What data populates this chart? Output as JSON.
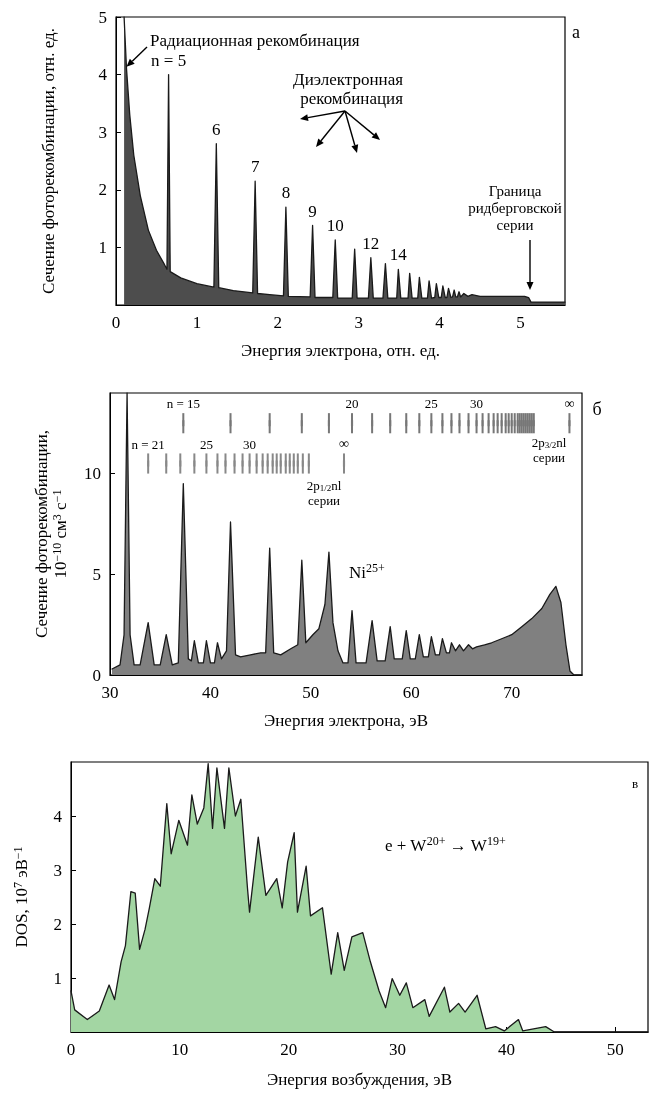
{
  "chart_data": [
    {
      "type": "area",
      "xlabel": "Энергия электрона, отн. ед.",
      "ylabel": "Сечение фоторекомбинации, отн. ед.",
      "color": "#4d4d4d",
      "x": [
        0.1,
        0.13,
        0.17,
        0.22,
        0.3,
        0.4,
        0.5,
        0.6,
        0.63,
        0.65,
        0.67,
        0.8,
        1.0,
        1.21,
        1.24,
        1.27,
        1.45,
        1.69,
        1.72,
        1.75,
        1.9,
        2.07,
        2.1,
        2.13,
        2.4,
        2.43,
        2.46,
        2.68,
        2.71,
        2.74,
        2.92,
        2.95,
        2.98,
        3.12,
        3.15,
        3.18,
        3.3,
        3.33,
        3.36,
        3.47,
        3.49,
        3.52,
        3.61,
        3.63,
        3.66,
        3.73,
        3.75,
        3.78,
        3.85,
        3.87,
        3.9,
        3.94,
        3.96,
        3.99,
        4.02,
        4.04,
        4.07,
        4.09,
        4.11,
        4.14,
        4.16,
        4.18,
        4.2,
        4.22,
        4.24,
        4.26,
        4.3,
        4.35,
        4.4,
        4.5,
        5.05,
        5.1,
        5.13,
        5.55
      ],
      "values": [
        5,
        4.1,
        3.3,
        2.6,
        1.9,
        1.3,
        0.95,
        0.7,
        0.62,
        4.0,
        0.58,
        0.47,
        0.37,
        0.31,
        2.8,
        0.3,
        0.25,
        0.21,
        2.15,
        0.2,
        0.18,
        0.16,
        1.7,
        0.15,
        0.14,
        1.38,
        0.13,
        0.13,
        1.13,
        0.12,
        0.12,
        0.97,
        0.12,
        0.12,
        0.82,
        0.12,
        0.12,
        0.72,
        0.12,
        0.12,
        0.62,
        0.12,
        0.12,
        0.55,
        0.12,
        0.12,
        0.48,
        0.12,
        0.12,
        0.42,
        0.12,
        0.13,
        0.37,
        0.13,
        0.13,
        0.33,
        0.13,
        0.13,
        0.29,
        0.13,
        0.14,
        0.26,
        0.14,
        0.14,
        0.23,
        0.14,
        0.2,
        0.15,
        0.18,
        0.15,
        0.15,
        0.13,
        0.05,
        0.05
      ],
      "xlim": [
        0,
        5.55
      ],
      "xticks": [
        0,
        1,
        2,
        3,
        4,
        5
      ],
      "ylim": [
        0,
        5
      ],
      "yticks": [
        1,
        2,
        3,
        4,
        5
      ],
      "annotations": [
        {
          "text": "Радиационная рекомбинация",
          "x": 0.13,
          "y": 4.1
        },
        {
          "text": "n = 5",
          "x": 0.65,
          "y": 4.0
        },
        {
          "text": "6",
          "x": 1.24,
          "y": 2.8
        },
        {
          "text": "7",
          "x": 1.72,
          "y": 2.15
        },
        {
          "text": "8",
          "x": 2.1,
          "y": 1.7
        },
        {
          "text": "9",
          "x": 2.43,
          "y": 1.38
        },
        {
          "text": "10",
          "x": 2.71,
          "y": 1.13
        },
        {
          "text": "12",
          "x": 3.15,
          "y": 0.82
        },
        {
          "text": "14",
          "x": 3.49,
          "y": 0.62
        },
        "Диэлектронная рекомбинация",
        "Граница ридберговской серии",
        "а"
      ]
    },
    {
      "type": "area",
      "xlabel": "Энергия электрона, эВ",
      "ylabel": "Сечение фоторекомбинации, 10$^{−10}$ см$^{3}$ с$^{−1}$",
      "series": [
        {
          "color": "#808080",
          "x": [
            30.2,
            31.0,
            31.4,
            31.7,
            32.0,
            32.4,
            33.0,
            33.8,
            34.4,
            35.0,
            35.6,
            36.2,
            36.8,
            37.3,
            37.8,
            38.1,
            38.4,
            38.8,
            39.3,
            39.6,
            40.0,
            40.4,
            40.7,
            41.1,
            41.6,
            42.0,
            42.5,
            43.0,
            44.0,
            45.0,
            45.5,
            45.9,
            46.3,
            47.0,
            48.0,
            48.7,
            49.1,
            49.5,
            50.2,
            50.8,
            51.4,
            51.8,
            52.2,
            52.7,
            53.2,
            53.7,
            54.1,
            54.5,
            55.5,
            56.1,
            56.6,
            57.4,
            57.9,
            58.3,
            59.1,
            59.5,
            59.9,
            60.4,
            60.8,
            61.2,
            61.7,
            62.0,
            62.4,
            62.8,
            63.1,
            63.5,
            63.8,
            64.0,
            64.4,
            64.8,
            65.2,
            65.7,
            66.1,
            66.5,
            67.3,
            68.0,
            69.0,
            70.0,
            71.0,
            72.0,
            73.0,
            73.8,
            74.4,
            74.9,
            75.4,
            75.8,
            76.2,
            77.0
          ],
          "values": [
            0.3,
            0.5,
            2,
            14,
            2,
            0.5,
            0.5,
            2.6,
            0.5,
            0.5,
            2.0,
            0.5,
            0.6,
            9.5,
            0.8,
            0.7,
            1.7,
            0.6,
            0.6,
            1.7,
            0.6,
            0.6,
            1.6,
            0.8,
            1.2,
            7.6,
            1.0,
            0.9,
            1.0,
            1.1,
            1.1,
            6.3,
            1.1,
            1.0,
            1.3,
            1.5,
            5.7,
            1.6,
            2.0,
            2.3,
            3.5,
            6.1,
            2.6,
            1.2,
            0.6,
            0.6,
            3.2,
            0.6,
            0.6,
            2.7,
            0.7,
            0.7,
            2.4,
            0.8,
            0.8,
            2.2,
            0.8,
            0.8,
            2.0,
            0.9,
            0.9,
            1.9,
            1.0,
            1.0,
            1.8,
            1.1,
            1.1,
            1.6,
            1.2,
            1.5,
            1.2,
            1.5,
            1.3,
            1.4,
            1.5,
            1.6,
            1.8,
            2.0,
            2.4,
            2.8,
            3.3,
            4.0,
            4.4,
            3.6,
            1.5,
            0.2,
            0,
            0
          ]
        },
        {
          "type": "scatter",
          "marker": "square",
          "color": "#777777",
          "x": [
            37.3,
            42.0,
            45.9,
            49.1,
            51.8,
            54.1,
            56.1,
            57.9,
            59.5,
            60.8,
            62.0,
            63.1,
            64.0,
            64.8,
            65.7,
            66.5,
            67.1,
            67.7,
            68.2,
            68.6,
            69.0,
            69.4,
            69.7,
            70.0,
            70.3,
            70.6,
            70.8,
            71.0,
            71.2,
            71.4,
            71.6,
            71.8,
            72.0,
            72.2,
            75.75
          ],
          "values": [
            12.5,
            12.5,
            12.5,
            12.5,
            12.5,
            12.5,
            12.5,
            12.5,
            12.5,
            12.5,
            12.5,
            12.5,
            12.5,
            12.5,
            12.5,
            12.5,
            12.5,
            12.5,
            12.5,
            12.5,
            12.5,
            12.5,
            12.5,
            12.5,
            12.5,
            12.5,
            12.5,
            12.5,
            12.5,
            12.5,
            12.5,
            12.5,
            12.5,
            12.5,
            12.5
          ],
          "errors": [
            0.5,
            0.5,
            0.5,
            0.5,
            0.5,
            0.5,
            0.5,
            0.5,
            0.5,
            0.5,
            0.5,
            0.5,
            0.5,
            0.5,
            0.5,
            0.5,
            0.5,
            0.5,
            0.5,
            0.5,
            0.5,
            0.5,
            0.5,
            0.5,
            0.5,
            0.5,
            0.5,
            0.5,
            0.5,
            0.5,
            0.5,
            0.5,
            0.5,
            0.5,
            0.5
          ]
        },
        {
          "type": "scatter",
          "marker": "square",
          "color": "#888888",
          "x": [
            33.8,
            35.6,
            37.0,
            38.4,
            39.6,
            40.7,
            41.5,
            42.4,
            43.2,
            43.9,
            44.6,
            45.2,
            45.7,
            46.2,
            46.6,
            47.0,
            47.5,
            47.9,
            48.3,
            48.7,
            49.2,
            49.8,
            53.3
          ],
          "values": [
            10.5,
            10.5,
            10.5,
            10.5,
            10.5,
            10.5,
            10.5,
            10.5,
            10.5,
            10.5,
            10.5,
            10.5,
            10.5,
            10.5,
            10.5,
            10.5,
            10.5,
            10.5,
            10.5,
            10.5,
            10.5,
            10.5,
            10.5
          ],
          "errors": [
            0.5,
            0.5,
            0.5,
            0.5,
            0.5,
            0.5,
            0.5,
            0.5,
            0.5,
            0.5,
            0.5,
            0.5,
            0.5,
            0.5,
            0.5,
            0.5,
            0.5,
            0.5,
            0.5,
            0.5,
            0.5,
            0.5,
            0.5
          ]
        }
      ],
      "xlim": [
        30,
        77
      ],
      "xticks": [
        30,
        40,
        50,
        60,
        70
      ],
      "ylim": [
        0,
        14
      ],
      "yticks": [
        0,
        5,
        10
      ],
      "annotations": [
        {
          "text": "n = 15",
          "x": 37.3,
          "y": 12.5
        },
        {
          "text": "20",
          "x": 54.1,
          "y": 12.5
        },
        {
          "text": "25",
          "x": 62.0,
          "y": 12.5
        },
        {
          "text": "30",
          "x": 66.5,
          "y": 12.5
        },
        {
          "text": "∞",
          "x": 75.75,
          "y": 12.5
        },
        {
          "text": "n = 21",
          "x": 33.8,
          "y": 10.5
        },
        {
          "text": "25",
          "x": 39.6,
          "y": 10.5
        },
        {
          "text": "30",
          "x": 43.9,
          "y": 10.5
        },
        {
          "text": "∞",
          "x": 53.3,
          "y": 10.5
        },
        "2p$_{3/2}$nl серии",
        "2p$_{1/2}$nl серии",
        "Ni$^{25+}$",
        "б"
      ]
    },
    {
      "type": "area",
      "xlabel": "Энергия возбуждения, эВ",
      "ylabel": "DOS, 10$^{7}$ эВ$^{−1}$",
      "color": "#a3d6a3",
      "x": [
        0,
        0.34,
        1.5,
        2.6,
        3.5,
        4.0,
        4.6,
        5.0,
        5.5,
        5.9,
        6.3,
        6.8,
        7.2,
        7.7,
        8.2,
        8.8,
        9.2,
        9.9,
        10.7,
        11.1,
        11.6,
        12.2,
        12.6,
        13.0,
        13.4,
        14.1,
        14.5,
        15.1,
        15.6,
        16.2,
        16.4,
        17.2,
        17.9,
        18.9,
        19.4,
        19.9,
        20.5,
        20.8,
        21.6,
        22.0,
        23.1,
        23.9,
        24.5,
        25.1,
        25.8,
        26.8,
        27.5,
        28.3,
        28.9,
        29.5,
        30.2,
        30.8,
        31.4,
        32.5,
        32.9,
        34.3,
        34.8,
        35.6,
        36.2,
        37.3,
        38.1,
        39.0,
        39.8,
        41.1,
        41.5,
        43.6,
        44.4,
        53.0
      ],
      "values": [
        0.76,
        0.41,
        0.23,
        0.39,
        0.87,
        0.6,
        1.3,
        1.6,
        2.6,
        2.57,
        1.53,
        1.9,
        2.3,
        2.84,
        2.7,
        4.23,
        3.3,
        3.92,
        3.46,
        4.39,
        3.85,
        4.15,
        4.97,
        3.77,
        4.89,
        3.77,
        4.89,
        4.0,
        4.31,
        2.69,
        2.22,
        3.61,
        2.53,
        2.84,
        2.3,
        3.15,
        3.69,
        2.22,
        3.07,
        2.15,
        2.3,
        1.07,
        1.84,
        1.14,
        1.76,
        1.84,
        1.3,
        0.76,
        0.45,
        0.99,
        0.68,
        0.91,
        0.45,
        0.6,
        0.29,
        0.83,
        0.37,
        0.53,
        0.37,
        0.68,
        0.06,
        0.1,
        0.02,
        0.23,
        0.02,
        0.1,
        0,
        0
      ],
      "xlim": [
        0,
        53
      ],
      "xticks": [
        0,
        10,
        20,
        30,
        40,
        50
      ],
      "ylim": [
        0,
        5
      ],
      "yticks": [
        1,
        2,
        3,
        4
      ],
      "annotations": [
        "e + W$^{20+}$ → W$^{19+}$",
        "в"
      ]
    }
  ]
}
